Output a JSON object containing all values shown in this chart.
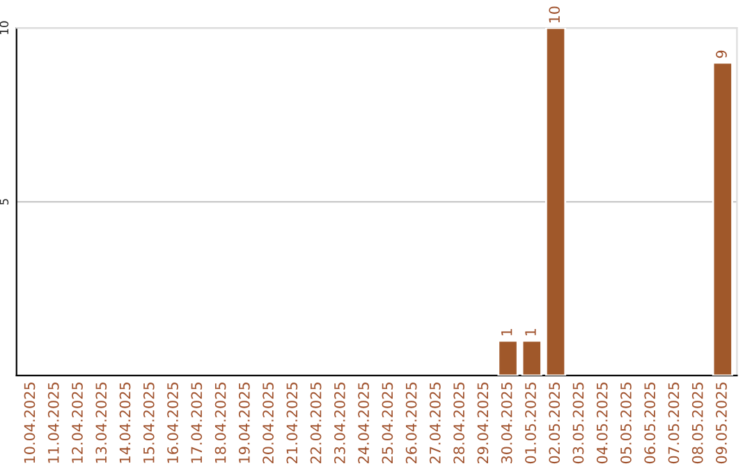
{
  "chart_data": {
    "type": "bar",
    "categories": [
      "10.04.2025",
      "11.04.2025",
      "12.04.2025",
      "13.04.2025",
      "14.04.2025",
      "15.04.2025",
      "16.04.2025",
      "17.04.2025",
      "18.04.2025",
      "19.04.2025",
      "20.04.2025",
      "21.04.2025",
      "22.04.2025",
      "23.04.2025",
      "24.04.2025",
      "25.04.2025",
      "26.04.2025",
      "27.04.2025",
      "28.04.2025",
      "29.04.2025",
      "30.04.2025",
      "01.05.2025",
      "02.05.2025",
      "03.05.2025",
      "04.05.2025",
      "05.05.2025",
      "06.05.2025",
      "07.05.2025",
      "08.05.2025",
      "09.05.2025"
    ],
    "values": [
      null,
      null,
      null,
      null,
      null,
      null,
      null,
      null,
      null,
      null,
      null,
      null,
      null,
      null,
      null,
      null,
      null,
      null,
      null,
      null,
      1,
      1,
      10,
      null,
      null,
      null,
      null,
      null,
      null,
      9
    ],
    "value_labels": [
      null,
      null,
      null,
      null,
      null,
      null,
      null,
      null,
      null,
      null,
      null,
      null,
      null,
      null,
      null,
      null,
      null,
      null,
      null,
      null,
      "1",
      "1",
      "10",
      null,
      null,
      null,
      null,
      null,
      null,
      "9"
    ],
    "color": "#a0582a",
    "ylim": [
      0,
      10
    ],
    "yticks": [
      5,
      10
    ],
    "grid": "y"
  }
}
